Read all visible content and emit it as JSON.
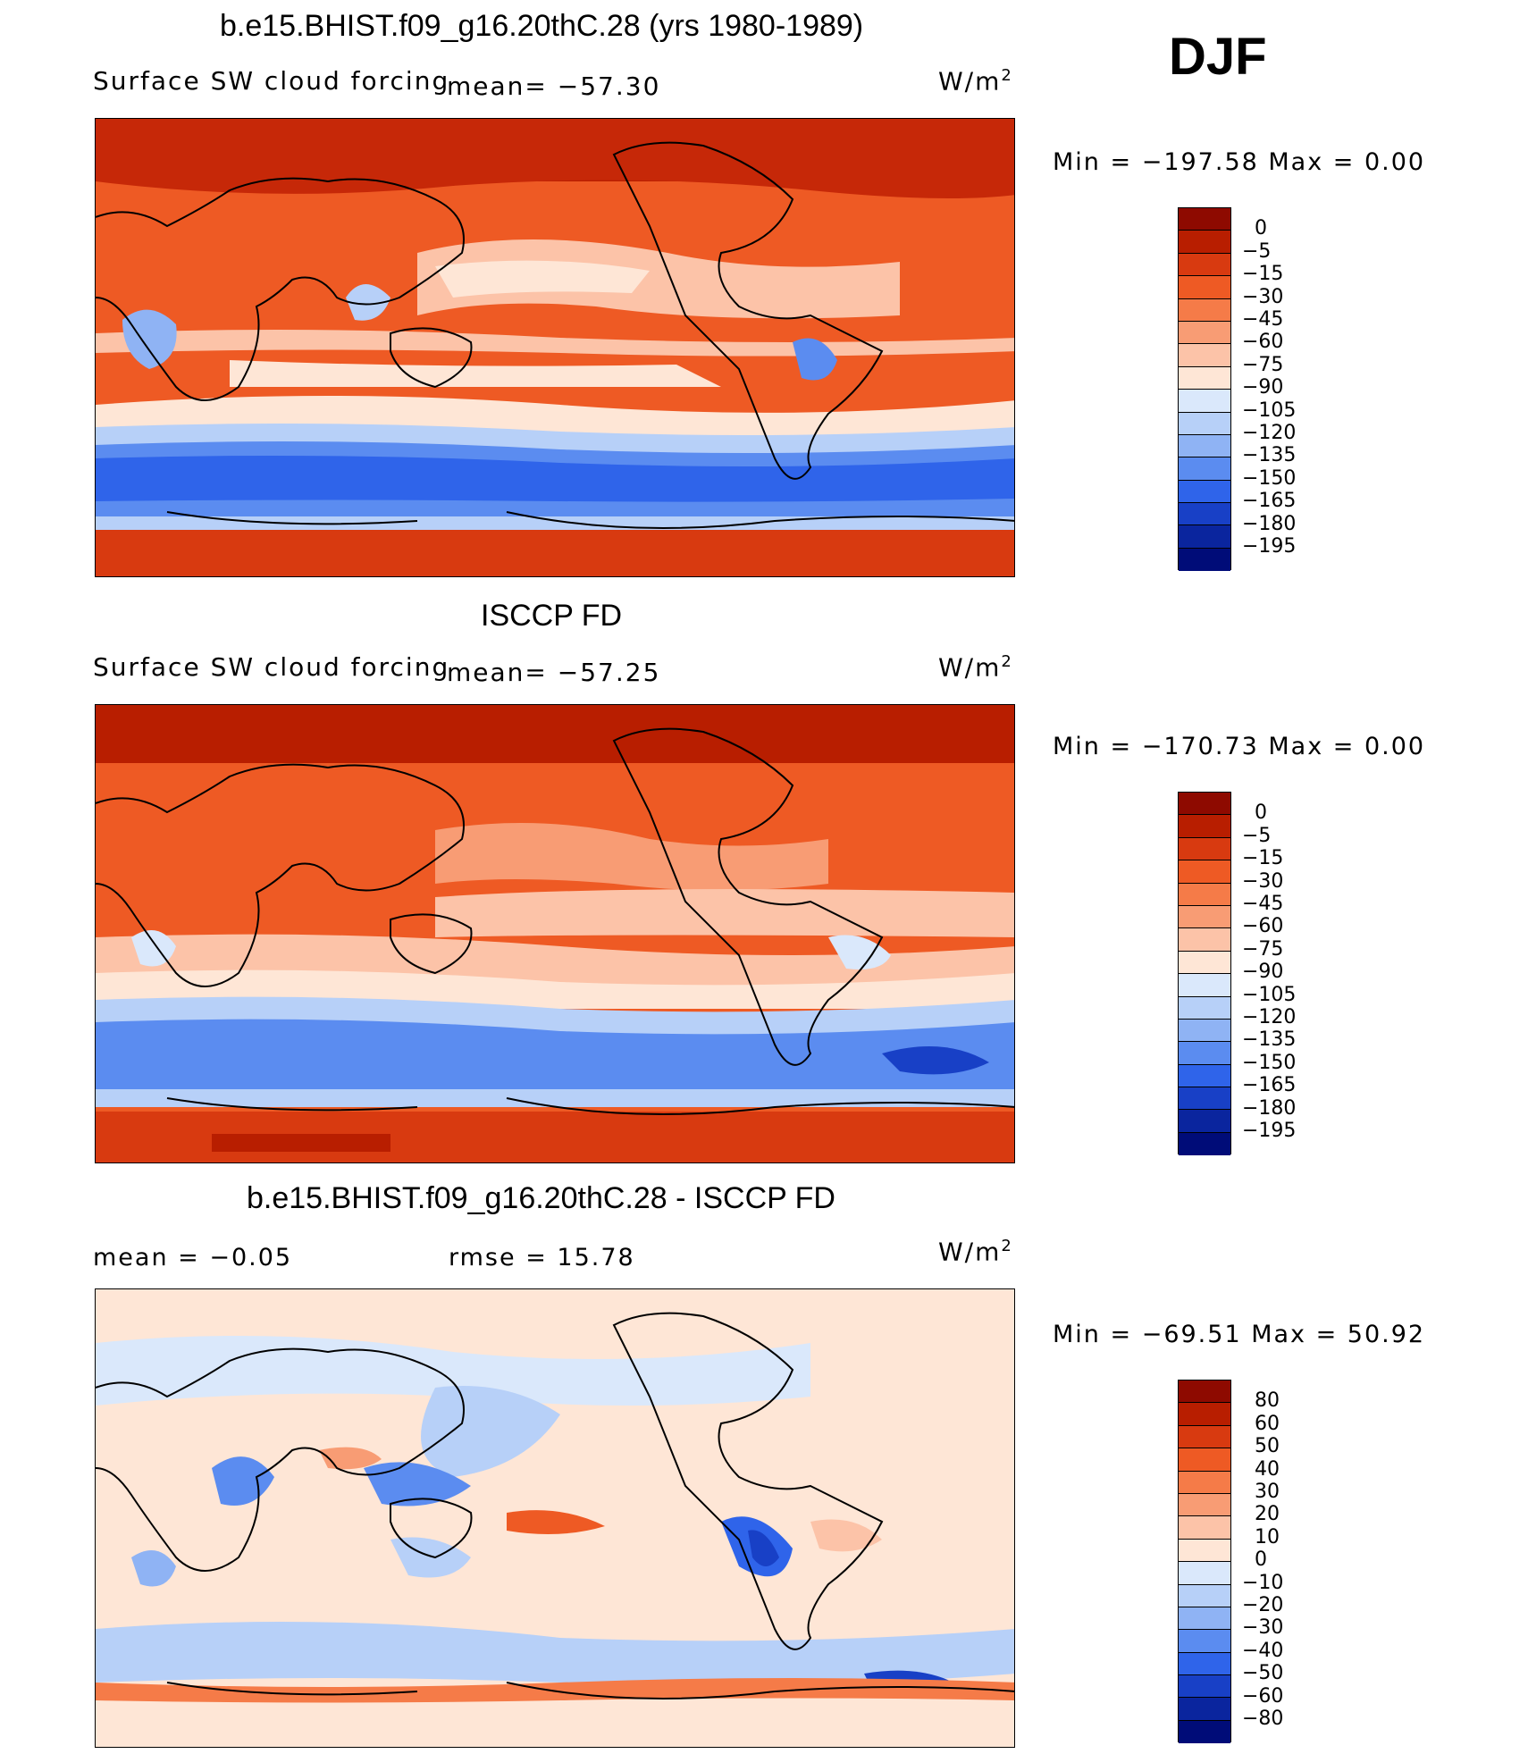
{
  "season": "DJF",
  "units": "W/m",
  "units_sup": "2",
  "palette": {
    "ocean_warm": "#f4a07a",
    "land_outline": "#000000",
    "red_dark": "#8b0a00",
    "blue_dark": "#000a7a"
  },
  "panels": [
    {
      "title": "b.e15.BHIST.f09_g16.20thC.28 (yrs 1980-1989)",
      "variable": "Surface SW cloud forcing",
      "mean_text": "mean=  −57.30",
      "min_max": "Min  =  −197.58  Max  =      0.00",
      "colorbar_labels": [
        "0",
        "−5",
        "−15",
        "−30",
        "−45",
        "−60",
        "−75",
        "−90",
        "−105",
        "−120",
        "−135",
        "−150",
        "−165",
        "−180",
        "−195"
      ],
      "colorbar_colors": [
        "#8e0a00",
        "#b81e00",
        "#d83a10",
        "#ee5a24",
        "#f57b48",
        "#f89c74",
        "#fcc3a8",
        "#fee6d6",
        "#dae8fb",
        "#b7d0f8",
        "#8fb3f4",
        "#5b8cf0",
        "#2f64ea",
        "#1840c6",
        "#0a259e",
        "#000c78"
      ]
    },
    {
      "title": "ISCCP FD",
      "variable": "Surface SW cloud forcing",
      "mean_text": "mean=  −57.25",
      "min_max": "Min  =  −170.73  Max  =      0.00",
      "colorbar_labels": [
        "0",
        "−5",
        "−15",
        "−30",
        "−45",
        "−60",
        "−75",
        "−90",
        "−105",
        "−120",
        "−135",
        "−150",
        "−165",
        "−180",
        "−195"
      ],
      "colorbar_colors": [
        "#8e0a00",
        "#b81e00",
        "#d83a10",
        "#ee5a24",
        "#f57b48",
        "#f89c74",
        "#fcc3a8",
        "#fee6d6",
        "#dae8fb",
        "#b7d0f8",
        "#8fb3f4",
        "#5b8cf0",
        "#2f64ea",
        "#1840c6",
        "#0a259e",
        "#000c78"
      ]
    },
    {
      "title": "b.e15.BHIST.f09_g16.20thC.28 - ISCCP FD",
      "mean_text": "mean  =     −0.05",
      "rmse_text": "rmse  =    15.78",
      "min_max": "Min  =  −69.51  Max  =    50.92",
      "colorbar_labels": [
        "80",
        "60",
        "50",
        "40",
        "30",
        "20",
        "10",
        "0",
        "−10",
        "−20",
        "−30",
        "−40",
        "−50",
        "−60",
        "−80"
      ],
      "colorbar_colors": [
        "#8e0a00",
        "#b81e00",
        "#d83a10",
        "#ee5a24",
        "#f57b48",
        "#f89c74",
        "#fcc3a8",
        "#fee6d6",
        "#dae8fb",
        "#b7d0f8",
        "#8fb3f4",
        "#5b8cf0",
        "#2f64ea",
        "#1840c6",
        "#0a259e",
        "#000c78"
      ]
    }
  ]
}
